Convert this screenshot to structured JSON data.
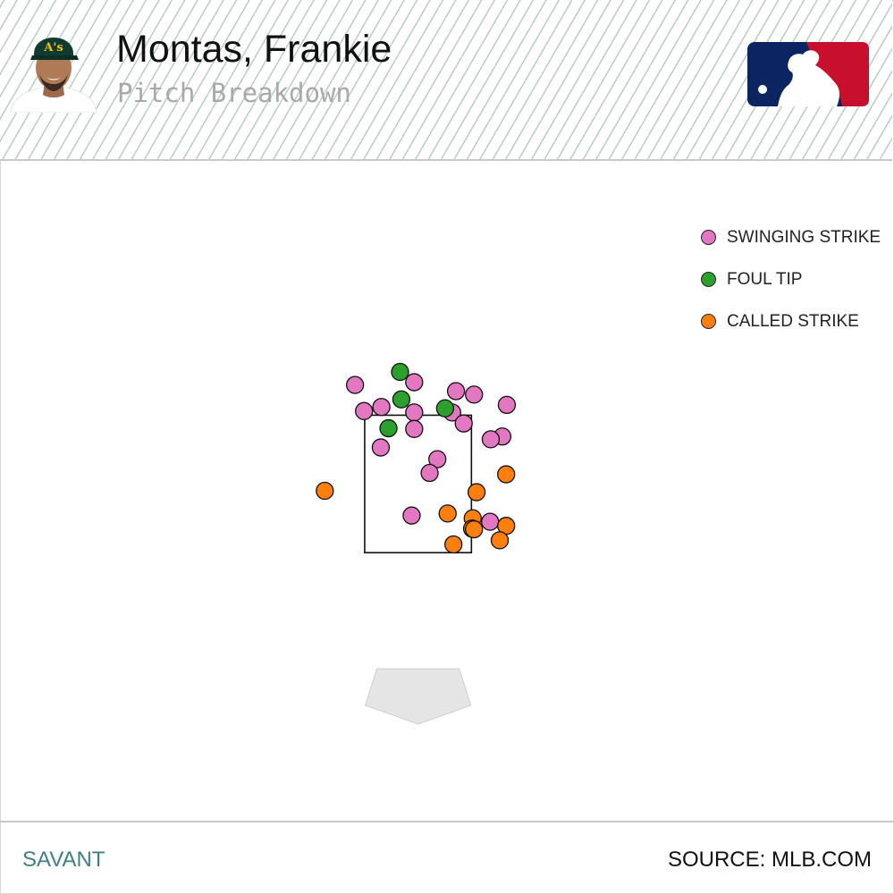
{
  "header": {
    "player_name": "Montas, Frankie",
    "subtitle": "Pitch Breakdown",
    "team_logo_icon": "athletics-cap-icon",
    "league_logo_icon": "mlb-logo-icon"
  },
  "footer": {
    "brand": "SAVANT",
    "source": "SOURCE: MLB.COM"
  },
  "chart_data": {
    "type": "scatter",
    "title": "",
    "xlabel": "",
    "ylabel": "",
    "grid": false,
    "legend_position": "top-right",
    "series": [
      {
        "name": "SWINGING STRIKE",
        "color": "#e377c2",
        "points": [
          [
            -0.98,
            3.94
          ],
          [
            -0.06,
            3.98
          ],
          [
            0.59,
            3.85
          ],
          [
            0.87,
            3.8
          ],
          [
            1.38,
            3.65
          ],
          [
            -0.57,
            3.62
          ],
          [
            -0.06,
            3.54
          ],
          [
            0.53,
            3.54
          ],
          [
            -0.84,
            3.56
          ],
          [
            0.71,
            3.38
          ],
          [
            -0.06,
            3.3
          ],
          [
            1.31,
            3.19
          ],
          [
            1.13,
            3.15
          ],
          [
            -0.58,
            3.03
          ],
          [
            0.3,
            2.86
          ],
          [
            0.18,
            2.66
          ],
          [
            -0.1,
            2.04
          ],
          [
            1.12,
            1.95
          ]
        ]
      },
      {
        "name": "FOUL TIP",
        "color": "#2ca02c",
        "points": [
          [
            -0.28,
            4.13
          ],
          [
            -0.26,
            3.73
          ],
          [
            0.42,
            3.6
          ],
          [
            -0.46,
            3.31
          ]
        ]
      },
      {
        "name": "CALLED STRIKE",
        "color": "#ff7f0e",
        "points": [
          [
            1.37,
            2.64
          ],
          [
            -1.45,
            2.4
          ],
          [
            0.91,
            2.38
          ],
          [
            0.46,
            2.07
          ],
          [
            0.85,
            2.0
          ],
          [
            1.37,
            1.89
          ],
          [
            0.84,
            1.85
          ],
          [
            0.87,
            1.84
          ],
          [
            1.27,
            1.68
          ],
          [
            0.55,
            1.62
          ]
        ]
      }
    ],
    "strike_zone": {
      "x": [
        -0.83,
        0.83
      ],
      "z": [
        1.5,
        3.5
      ]
    },
    "home_plate": {
      "half_width": 0.71
    },
    "xlim": [
      -6.5,
      7.4
    ],
    "ylim": [
      -2.4,
      7.2
    ]
  }
}
